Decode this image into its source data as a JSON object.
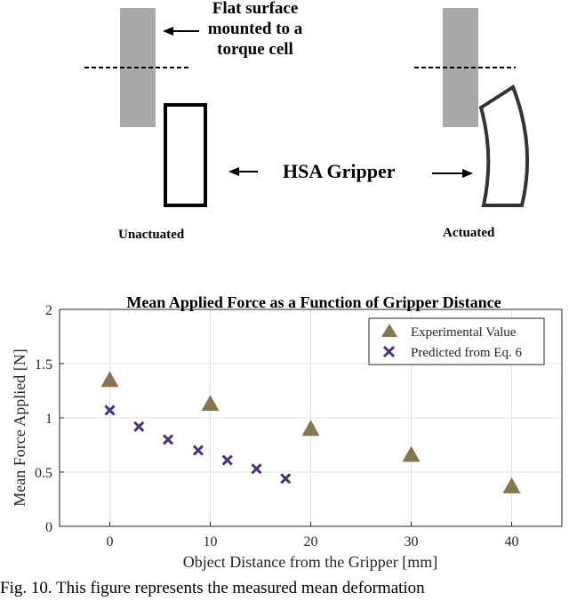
{
  "diagram": {
    "surface_label": [
      "Flat surface",
      "mounted to a",
      "torque cell"
    ],
    "gripper_label": "HSA Gripper",
    "unactuated_label": "Unactuated",
    "actuated_label": "Actuated"
  },
  "caption": "Fig. 10.  This figure represents the measured mean deformation",
  "chart_data": {
    "type": "scatter",
    "title": "Mean Applied Force as a Function of Gripper Distance",
    "xlabel": "Object Distance from the Gripper [mm]",
    "ylabel": "Mean Force Applied [N]",
    "xlim": [
      -5,
      45
    ],
    "ylim": [
      0,
      2
    ],
    "xticks": [
      0,
      10,
      20,
      30,
      40
    ],
    "yticks": [
      0,
      0.5,
      1,
      1.5,
      2
    ],
    "xtick_labels": [
      "0",
      "10",
      "20",
      "30",
      "40"
    ],
    "ytick_labels": [
      "0",
      "0.5",
      "1",
      "1.5",
      "2"
    ],
    "grid": true,
    "legend_position": "top-right",
    "colors": {
      "experimental": "#857550",
      "predicted": "#4b3285"
    },
    "series": [
      {
        "name": "Experimental Value",
        "marker": "triangle",
        "x": [
          0,
          10,
          20,
          30,
          40
        ],
        "y": [
          1.35,
          1.13,
          0.9,
          0.66,
          0.37
        ]
      },
      {
        "name": "Predicted from Eq. 6",
        "marker": "x",
        "x": [
          0,
          2.9,
          5.8,
          8.8,
          11.7,
          14.6,
          17.5
        ],
        "y": [
          1.07,
          0.92,
          0.8,
          0.7,
          0.61,
          0.53,
          0.44
        ]
      }
    ]
  }
}
